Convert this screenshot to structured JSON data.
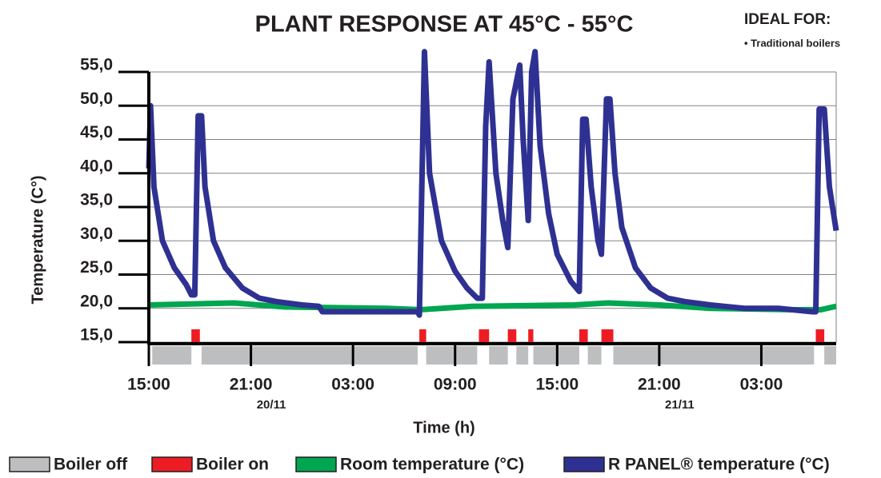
{
  "chart_data": {
    "type": "line",
    "title": "PLANT RESPONSE AT 45°C - 55°C",
    "note_title": "IDEAL FOR:",
    "note_item": "• Traditional boilers",
    "xlabel": "Time (h)",
    "ylabel": "Temperature (C°)",
    "xlim": [
      0,
      40.4
    ],
    "ylim": [
      15,
      55
    ],
    "xticks": [
      {
        "value": 0,
        "label": "15:00"
      },
      {
        "value": 6,
        "label": "21:00"
      },
      {
        "value": 12,
        "label": "03:00"
      },
      {
        "value": 18,
        "label": "09:00"
      },
      {
        "value": 24,
        "label": "15:00"
      },
      {
        "value": 30,
        "label": "21:00"
      },
      {
        "value": 36,
        "label": "03:00"
      }
    ],
    "yticks": [
      {
        "value": 15,
        "label": "15,0"
      },
      {
        "value": 20,
        "label": "20,0"
      },
      {
        "value": 25,
        "label": "25,0"
      },
      {
        "value": 30,
        "label": "30,0"
      },
      {
        "value": 35,
        "label": "35,0"
      },
      {
        "value": 40,
        "label": "40,0"
      },
      {
        "value": 45,
        "label": "45,0"
      },
      {
        "value": 50,
        "label": "50,0"
      },
      {
        "value": 55,
        "label": "55,0"
      }
    ],
    "annotations": [
      {
        "x": 7.2,
        "text": "20/11"
      },
      {
        "x": 31.2,
        "text": "21/11"
      }
    ],
    "grid": true,
    "boiler": [
      {
        "name": "Boiler off",
        "color": "#bcbec0",
        "periods": [
          [
            0.2,
            2.5
          ],
          [
            3.1,
            15.8
          ],
          [
            16.3,
            19.3
          ],
          [
            20.0,
            21.1
          ],
          [
            21.6,
            22.3
          ],
          [
            22.6,
            25.3
          ],
          [
            25.8,
            26.6
          ],
          [
            27.3,
            39.1
          ],
          [
            39.7,
            40.4
          ]
        ]
      },
      {
        "name": "Boiler on",
        "color": "#ed1c24",
        "periods": [
          [
            2.5,
            3.0
          ],
          [
            15.9,
            16.3
          ],
          [
            19.4,
            20.0
          ],
          [
            21.1,
            21.6
          ],
          [
            22.3,
            22.6
          ],
          [
            25.3,
            25.8
          ],
          [
            26.6,
            27.3
          ],
          [
            39.2,
            39.7
          ]
        ]
      }
    ],
    "series": [
      {
        "name": "Room temperature (°C)",
        "color": "#00a650",
        "x": [
          0,
          5,
          8,
          14,
          16,
          19,
          25,
          27,
          30,
          33,
          38,
          39.5,
          40.4
        ],
        "values": [
          20.5,
          20.8,
          20.2,
          20,
          19.8,
          20.3,
          20.5,
          20.8,
          20.5,
          20,
          19.8,
          19.8,
          20.3
        ]
      },
      {
        "name": "R PANEL® temperature (°C)",
        "color": "#2e3192",
        "x": [
          0,
          0.1,
          0.3,
          0.8,
          1.5,
          2.2,
          2.5,
          2.7,
          2.9,
          3.1,
          3.3,
          3.8,
          4.5,
          5.5,
          6.5,
          7.5,
          9,
          10,
          10.2,
          15.8,
          15.9,
          16.2,
          16.5,
          17.2,
          18,
          18.7,
          19.3,
          19.6,
          19.8,
          20.0,
          20.4,
          20.8,
          21.1,
          21.4,
          21.8,
          22.0,
          22.3,
          22.5,
          22.7,
          23.0,
          23.5,
          24.0,
          24.8,
          25.3,
          25.5,
          25.7,
          26.0,
          26.4,
          26.6,
          26.9,
          27.1,
          27.4,
          27.8,
          28.6,
          29.5,
          30.5,
          31.5,
          33,
          35,
          37,
          39,
          39.2,
          39.4,
          39.7,
          40.0,
          40.4
        ],
        "values": [
          40.7,
          50,
          38,
          30,
          26,
          23.5,
          22,
          22,
          48.5,
          48.5,
          38,
          30,
          26,
          23,
          21.5,
          21,
          20.5,
          20.3,
          19.5,
          19.5,
          19,
          58,
          40,
          30,
          25.5,
          23,
          21.5,
          21.5,
          47,
          56.5,
          40,
          33,
          29,
          51,
          56,
          45,
          33,
          55,
          58,
          44,
          34,
          28,
          24,
          22.5,
          48,
          48,
          38,
          30,
          28,
          51,
          51,
          40,
          32,
          26,
          23,
          21.5,
          21,
          20.5,
          20,
          20,
          19.5,
          19.5,
          49.5,
          49.5,
          38,
          31.5
        ]
      }
    ]
  }
}
